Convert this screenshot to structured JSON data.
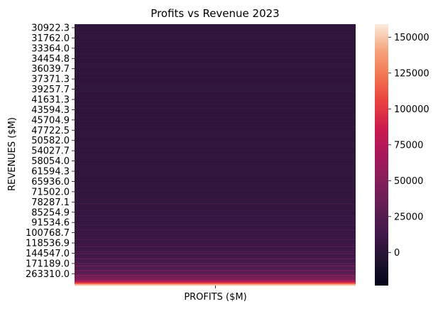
{
  "chart_data": {
    "type": "heatmap",
    "title": "Profits vs Revenue 2023",
    "xlabel": "PROFITS ($M)",
    "ylabel": "REVENUES ($M)",
    "x_categories": [
      ""
    ],
    "y_tick_labels": [
      "30922.3",
      "31762.0",
      "33364.0",
      "34454.8",
      "36039.7",
      "37371.3",
      "39257.7",
      "41631.3",
      "43594.3",
      "45704.9",
      "47722.5",
      "50582.0",
      "54027.7",
      "58054.0",
      "61594.3",
      "65936.0",
      "71502.0",
      "78287.1",
      "85254.9",
      "91534.6",
      "100768.7",
      "118536.9",
      "144547.0",
      "171189.0",
      "263310.0"
    ],
    "colorbar_ticks": [
      0,
      25000,
      50000,
      75000,
      100000,
      125000,
      150000
    ],
    "colorbar_range": [
      -23119,
      159069
    ],
    "colormap": "rocket",
    "values": [
      4900,
      1200,
      3100,
      2200,
      5600,
      1800,
      3400,
      2500,
      1900,
      4100,
      2800,
      1500,
      3300,
      2600,
      4400,
      2100,
      1700,
      3800,
      2900,
      5200,
      1400,
      3600,
      2000,
      2700,
      4000,
      3100,
      1600,
      2400,
      4600,
      2200,
      3000,
      1900,
      2800,
      3500,
      1300,
      4300,
      2600,
      2100,
      3700,
      1800,
      5000,
      2500,
      3200,
      2000,
      2900,
      4200,
      1700,
      3900,
      2400,
      3100,
      6000,
      2300,
      2700,
      1600,
      3400,
      2900,
      4800,
      2100,
      3300,
      2600,
      1900,
      4500,
      3000,
      2200,
      3600,
      1500,
      4100,
      2700,
      3200,
      2000,
      5300,
      2500,
      2800,
      3900,
      1800,
      4400,
      2600,
      3500,
      2300,
      3100,
      1700,
      4700,
      2900,
      2200,
      3800,
      2600,
      5500,
      2000,
      3400,
      2800,
      4200,
      2400,
      3700,
      1900,
      5100,
      3000,
      2500,
      4300,
      2100,
      3600,
      2900,
      4900,
      2300,
      3200,
      2700,
      6500,
      2600,
      3900,
      2200,
      4600,
      3100,
      2800,
      5800,
      2400,
      3500,
      3000,
      4400,
      2700,
      6200,
      2500,
      3800,
      3300,
      5000,
      2900,
      4100,
      2600,
      7000,
      3200,
      3600,
      2800,
      5400,
      3000,
      4500,
      3400,
      6800,
      2700,
      4000,
      3600,
      5200,
      3100,
      7400,
      2900,
      4300,
      3700,
      6000,
      3300,
      8000,
      3500,
      4700,
      3000,
      9500,
      3800,
      5100,
      4200,
      7200,
      3600,
      8600,
      4000,
      5600,
      4400,
      11000,
      4100,
      6400,
      4800,
      9000,
      4300,
      7800,
      5000,
      12500,
      4600,
      7000,
      5400,
      15000,
      5200,
      8800,
      6000,
      13500,
      5600,
      10000,
      6600,
      18000,
      6200,
      9500,
      7200,
      16000,
      6800,
      22000,
      7600,
      12000,
      8400,
      20000,
      9000,
      26000,
      10000,
      15000,
      11500,
      31000,
      12500,
      18000,
      14000,
      28000,
      16000,
      36000,
      18000,
      24000,
      21000,
      42000,
      23000,
      30000,
      27000,
      52000,
      33000,
      48000,
      40000,
      60000,
      75000,
      95000,
      120000,
      150000
    ]
  }
}
